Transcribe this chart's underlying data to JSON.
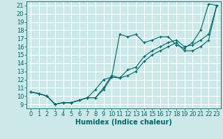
{
  "xlabel": "Humidex (Indice chaleur)",
  "ylabel": "",
  "bg_color": "#cce8e8",
  "grid_color": "#b8d8d8",
  "line_color": "#006666",
  "xlim": [
    -0.5,
    23.5
  ],
  "ylim": [
    8.5,
    21.5
  ],
  "x": [
    0,
    1,
    2,
    3,
    4,
    5,
    6,
    7,
    8,
    9,
    10,
    11,
    12,
    13,
    14,
    15,
    16,
    17,
    18,
    19,
    20,
    21,
    22,
    23
  ],
  "line1": [
    10.5,
    10.3,
    10.0,
    9.0,
    9.2,
    9.2,
    9.5,
    9.8,
    9.8,
    10.8,
    12.3,
    17.5,
    17.2,
    17.5,
    16.5,
    16.8,
    17.2,
    17.2,
    16.2,
    15.8,
    16.5,
    18.0,
    21.2,
    21.0
  ],
  "line2": [
    10.5,
    10.3,
    10.0,
    9.0,
    9.2,
    9.2,
    9.5,
    9.8,
    9.8,
    11.0,
    12.5,
    12.2,
    13.2,
    13.5,
    14.8,
    15.5,
    16.0,
    16.5,
    16.8,
    16.0,
    16.2,
    16.8,
    17.5,
    21.0
  ],
  "line3": [
    10.5,
    10.3,
    10.0,
    9.0,
    9.2,
    9.2,
    9.5,
    9.8,
    10.8,
    12.0,
    12.3,
    12.2,
    12.5,
    13.0,
    14.2,
    15.0,
    15.5,
    16.0,
    16.5,
    15.5,
    15.5,
    16.0,
    16.8,
    21.0
  ],
  "yticks": [
    9,
    10,
    11,
    12,
    13,
    14,
    15,
    16,
    17,
    18,
    19,
    20,
    21
  ],
  "xticks": [
    0,
    1,
    2,
    3,
    4,
    5,
    6,
    7,
    8,
    9,
    10,
    11,
    12,
    13,
    14,
    15,
    16,
    17,
    18,
    19,
    20,
    21,
    22,
    23
  ],
  "marker": "+",
  "markersize": 3,
  "linewidth": 0.8,
  "font_size": 6,
  "xlabel_fontsize": 7
}
